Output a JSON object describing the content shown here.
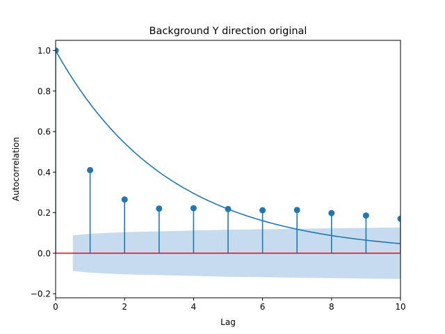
{
  "chart_data": {
    "type": "stem",
    "title": "Background Y direction original",
    "xlabel": "Lag",
    "ylabel": "Autocorrelation",
    "xlim": [
      0,
      10
    ],
    "ylim": [
      -0.22,
      1.05
    ],
    "xticks": [
      0,
      2,
      4,
      6,
      8,
      10
    ],
    "yticks": [
      -0.2,
      0.0,
      0.2,
      0.4,
      0.6,
      0.8,
      1.0
    ],
    "ytick_labels": [
      "−0.2",
      "0.0",
      "0.2",
      "0.4",
      "0.6",
      "0.8",
      "1.0"
    ],
    "grid": false,
    "series": [
      {
        "kind": "stem",
        "color": "#1f77b4",
        "x": [
          0,
          1,
          2,
          3,
          4,
          5,
          6,
          7,
          8,
          9,
          10
        ],
        "values": [
          1.0,
          0.41,
          0.265,
          0.22,
          0.222,
          0.218,
          0.212,
          0.213,
          0.198,
          0.186,
          0.17
        ]
      },
      {
        "kind": "line",
        "color": "#1f77b4",
        "function": "exponential decay",
        "y0": 1.0,
        "decay_rate": 0.305
      },
      {
        "kind": "confidence_band",
        "color": "#c6dbed",
        "x": [
          0.5,
          1,
          2,
          3,
          4,
          5,
          6,
          7,
          8,
          9,
          10
        ],
        "upper": [
          0.088,
          0.096,
          0.104,
          0.108,
          0.112,
          0.116,
          0.118,
          0.121,
          0.123,
          0.125,
          0.127
        ]
      },
      {
        "kind": "hline",
        "color": "#ff0000",
        "y": 0.0
      }
    ]
  }
}
